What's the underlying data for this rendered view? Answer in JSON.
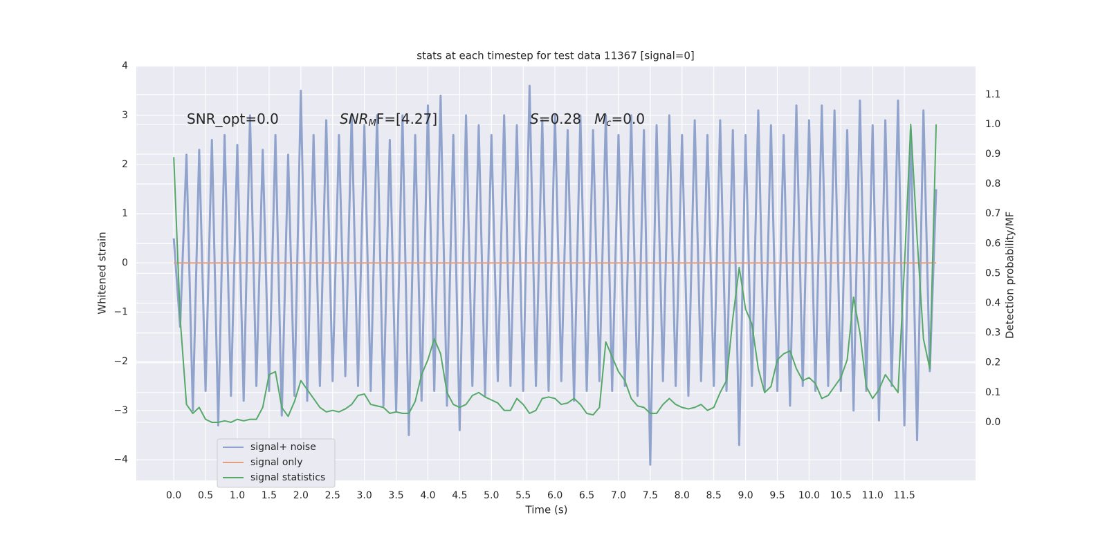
{
  "chart_data": {
    "type": "line",
    "title": "stats at each timestep for test data 11367 [signal=0]",
    "xlabel": "Time (s)",
    "ylabel": "Whitened strain",
    "y2label": "Detection probability/MF",
    "annotations": [
      [
        "SNR_opt=0.0"
      ],
      [
        "SNR",
        "M",
        "F=[4.27]"
      ],
      [
        "S",
        "=0.28   ",
        "M",
        "c",
        "=0.0"
      ]
    ],
    "x": [
      0.0,
      0.1,
      0.2,
      0.3,
      0.4,
      0.5,
      0.6,
      0.7,
      0.8,
      0.9,
      1.0,
      1.1,
      1.2,
      1.3,
      1.4,
      1.5,
      1.6,
      1.7,
      1.8,
      1.9,
      2.0,
      2.1,
      2.2,
      2.3,
      2.4,
      2.5,
      2.6,
      2.7,
      2.8,
      2.9,
      3.0,
      3.1,
      3.2,
      3.3,
      3.4,
      3.5,
      3.6,
      3.7,
      3.8,
      3.9,
      4.0,
      4.1,
      4.2,
      4.3,
      4.4,
      4.5,
      4.6,
      4.7,
      4.8,
      4.9,
      5.0,
      5.1,
      5.2,
      5.3,
      5.4,
      5.5,
      5.6,
      5.7,
      5.8,
      5.9,
      6.0,
      6.1,
      6.2,
      6.3,
      6.4,
      6.5,
      6.6,
      6.7,
      6.8,
      6.9,
      7.0,
      7.1,
      7.2,
      7.3,
      7.4,
      7.5,
      7.6,
      7.7,
      7.8,
      7.9,
      8.0,
      8.1,
      8.2,
      8.3,
      8.4,
      8.5,
      8.6,
      8.7,
      8.8,
      8.9,
      9.0,
      9.1,
      9.2,
      9.3,
      9.4,
      9.5,
      9.6,
      9.7,
      9.8,
      9.9,
      10.0,
      10.1,
      10.2,
      10.3,
      10.4,
      10.5,
      10.6,
      10.7,
      10.8,
      10.9,
      11.0,
      11.1,
      11.2,
      11.3,
      11.4,
      11.5,
      11.6,
      11.7,
      11.8,
      11.9,
      12.0
    ],
    "series": [
      {
        "name": "signal+ noise",
        "color": "#8fa3cc",
        "values": [
          0.5,
          -1.3,
          2.2,
          -3.0,
          2.3,
          -2.6,
          2.5,
          -3.3,
          2.6,
          -2.7,
          2.4,
          -2.8,
          3.0,
          -2.5,
          2.3,
          -2.6,
          2.6,
          -3.1,
          2.2,
          -2.7,
          3.5,
          -2.8,
          2.6,
          -2.5,
          2.9,
          -2.4,
          2.6,
          -2.3,
          3.0,
          -2.5,
          2.8,
          -2.6,
          3.0,
          -2.9,
          2.5,
          -3.0,
          3.0,
          -3.5,
          2.6,
          -2.8,
          3.2,
          -2.6,
          3.4,
          -2.9,
          2.6,
          -3.4,
          3.0,
          -2.5,
          2.8,
          -2.7,
          2.6,
          -2.4,
          3.0,
          -2.5,
          2.8,
          -2.6,
          3.6,
          -2.5,
          2.9,
          -2.6,
          3.0,
          -2.4,
          2.7,
          -2.8,
          3.0,
          -2.6,
          2.7,
          -2.4,
          3.0,
          -2.6,
          2.6,
          -2.5,
          3.0,
          -2.7,
          2.7,
          -4.1,
          2.8,
          -2.4,
          3.0,
          -2.5,
          2.6,
          -2.7,
          2.9,
          -2.4,
          2.6,
          -2.5,
          2.9,
          -2.6,
          2.7,
          -3.7,
          2.6,
          -2.5,
          3.1,
          -2.6,
          2.8,
          -2.6,
          2.6,
          -2.9,
          3.2,
          -2.5,
          2.9,
          -2.6,
          3.2,
          -2.5,
          3.1,
          -2.6,
          2.7,
          -3.0,
          3.3,
          -2.6,
          2.8,
          -3.2,
          2.9,
          -2.5,
          3.3,
          -3.3,
          2.7,
          -3.6,
          3.1,
          -2.2,
          1.5
        ]
      },
      {
        "name": "signal only",
        "color": "#e39e7f",
        "values": [
          0,
          0,
          0,
          0,
          0,
          0,
          0,
          0,
          0,
          0,
          0,
          0,
          0,
          0,
          0,
          0,
          0,
          0,
          0,
          0,
          0,
          0,
          0,
          0,
          0,
          0,
          0,
          0,
          0,
          0,
          0,
          0,
          0,
          0,
          0,
          0,
          0,
          0,
          0,
          0,
          0,
          0,
          0,
          0,
          0,
          0,
          0,
          0,
          0,
          0,
          0,
          0,
          0,
          0,
          0,
          0,
          0,
          0,
          0,
          0,
          0,
          0,
          0,
          0,
          0,
          0,
          0,
          0,
          0,
          0,
          0,
          0,
          0,
          0,
          0,
          0,
          0,
          0,
          0,
          0,
          0,
          0,
          0,
          0,
          0,
          0,
          0,
          0,
          0,
          0,
          0,
          0,
          0,
          0,
          0,
          0,
          0,
          0,
          0,
          0,
          0,
          0,
          0,
          0,
          0,
          0,
          0,
          0,
          0,
          0,
          0,
          0,
          0,
          0,
          0,
          0,
          0,
          0,
          0,
          0,
          0
        ]
      },
      {
        "name": "signal statistics",
        "color": "#55a868",
        "axis": "y2",
        "values": [
          0.89,
          0.35,
          0.06,
          0.03,
          0.05,
          0.01,
          0.0,
          0.0,
          0.005,
          0.0,
          0.01,
          0.005,
          0.01,
          0.01,
          0.05,
          0.16,
          0.17,
          0.05,
          0.02,
          0.07,
          0.14,
          0.11,
          0.08,
          0.05,
          0.035,
          0.04,
          0.035,
          0.045,
          0.06,
          0.09,
          0.095,
          0.06,
          0.055,
          0.05,
          0.03,
          0.035,
          0.03,
          0.03,
          0.07,
          0.16,
          0.21,
          0.28,
          0.23,
          0.1,
          0.06,
          0.05,
          0.06,
          0.09,
          0.1,
          0.085,
          0.075,
          0.065,
          0.04,
          0.04,
          0.08,
          0.06,
          0.03,
          0.04,
          0.08,
          0.085,
          0.08,
          0.06,
          0.065,
          0.08,
          0.06,
          0.03,
          0.025,
          0.05,
          0.27,
          0.22,
          0.17,
          0.14,
          0.08,
          0.055,
          0.05,
          0.03,
          0.03,
          0.06,
          0.08,
          0.06,
          0.05,
          0.045,
          0.05,
          0.06,
          0.04,
          0.05,
          0.1,
          0.14,
          0.35,
          0.52,
          0.38,
          0.33,
          0.18,
          0.1,
          0.12,
          0.21,
          0.23,
          0.24,
          0.18,
          0.14,
          0.15,
          0.13,
          0.08,
          0.09,
          0.12,
          0.15,
          0.21,
          0.42,
          0.3,
          0.12,
          0.08,
          0.11,
          0.16,
          0.13,
          0.1,
          0.52,
          1.0,
          0.62,
          0.28,
          0.18,
          1.0
        ]
      }
    ],
    "xlim": [
      -0.59,
      12.62
    ],
    "xticks": [
      {
        "value": 0,
        "label": "0.0"
      },
      0.5,
      {
        "value": 1,
        "label": "1.0"
      },
      1.5,
      {
        "value": 2,
        "label": "2.0"
      },
      2.5,
      {
        "value": 3,
        "label": "3.0"
      },
      3.5,
      {
        "value": 4,
        "label": "4.0"
      },
      4.5,
      {
        "value": 5,
        "label": "5.0"
      },
      5.5,
      {
        "value": 6,
        "label": "6.0"
      },
      6.5,
      {
        "value": 7,
        "label": "7.0"
      },
      7.5,
      {
        "value": 8,
        "label": "8.0"
      },
      8.5,
      {
        "value": 9,
        "label": "9.0"
      },
      9.5,
      {
        "value": 10,
        "label": "10.0"
      },
      10.5,
      {
        "value": 11,
        "label": "11.0"
      },
      11.5
    ],
    "ylim": [
      -4.42,
      4.01
    ],
    "yticks": [
      {
        "value": -4,
        "label": "−4"
      },
      {
        "value": -3,
        "label": "−3"
      },
      {
        "value": -2,
        "label": "−2"
      },
      {
        "value": -1,
        "label": "−1"
      },
      0,
      1,
      2,
      3,
      4
    ],
    "y2lim": [
      -0.195,
      1.197
    ],
    "y2ticks": [
      {
        "value": 0,
        "label": "0.0"
      },
      0.1,
      0.2,
      0.3,
      0.4,
      0.5,
      0.6,
      0.7,
      0.8,
      0.9,
      {
        "value": 1,
        "label": "1.0"
      },
      1.1
    ],
    "grid": true,
    "legend": "lower left"
  }
}
